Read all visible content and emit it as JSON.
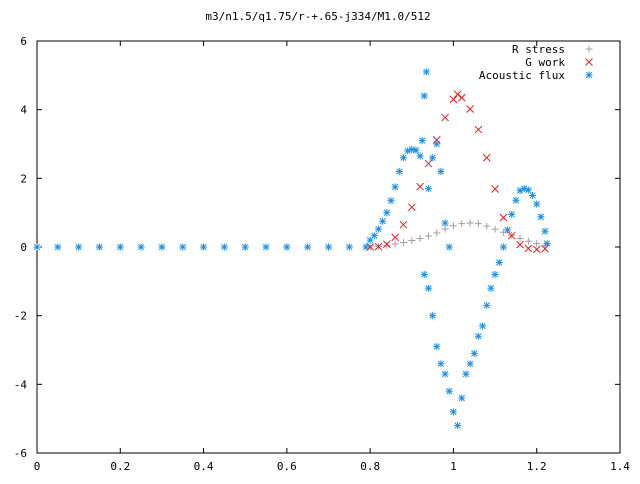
{
  "chart_data": {
    "type": "scatter",
    "title": "m3/n1.5/q1.75/r-+.65-j334/M1.0/512",
    "xlabel": "",
    "ylabel": "",
    "xlim": [
      0,
      1.4
    ],
    "ylim": [
      -6,
      6
    ],
    "x_ticks": [
      "0",
      "0.2",
      "0.4",
      "0.6",
      "0.8",
      "1",
      "1.2",
      "1.4"
    ],
    "y_ticks": [
      "-6",
      "-4",
      "-2",
      "0",
      "2",
      "4",
      "6"
    ],
    "grid": false,
    "legend_position": "top-right",
    "series": [
      {
        "name": "R stress",
        "marker": "+",
        "color": "#a0a0a0",
        "points": [
          [
            0.0,
            0.0
          ],
          [
            0.1,
            0.0
          ],
          [
            0.2,
            0.0
          ],
          [
            0.3,
            0.0
          ],
          [
            0.4,
            0.0
          ],
          [
            0.5,
            0.0
          ],
          [
            0.6,
            0.0
          ],
          [
            0.7,
            0.0
          ],
          [
            0.8,
            0.0
          ],
          [
            0.82,
            0.02
          ],
          [
            0.84,
            0.05
          ],
          [
            0.86,
            0.09
          ],
          [
            0.88,
            0.13
          ],
          [
            0.9,
            0.19
          ],
          [
            0.92,
            0.25
          ],
          [
            0.94,
            0.32
          ],
          [
            0.96,
            0.41
          ],
          [
            0.98,
            0.52
          ],
          [
            1.0,
            0.62
          ],
          [
            1.02,
            0.68
          ],
          [
            1.04,
            0.7
          ],
          [
            1.06,
            0.68
          ],
          [
            1.08,
            0.61
          ],
          [
            1.1,
            0.52
          ],
          [
            1.12,
            0.43
          ],
          [
            1.14,
            0.34
          ],
          [
            1.16,
            0.25
          ],
          [
            1.18,
            0.17
          ],
          [
            1.2,
            0.1
          ],
          [
            1.22,
            0.05
          ]
        ]
      },
      {
        "name": "G work",
        "marker": "x",
        "color": "#e22222",
        "points": [
          [
            0.8,
            0.0
          ],
          [
            0.82,
            0.01
          ],
          [
            0.84,
            0.08
          ],
          [
            0.86,
            0.28
          ],
          [
            0.88,
            0.65
          ],
          [
            0.9,
            1.16
          ],
          [
            0.92,
            1.76
          ],
          [
            0.94,
            2.43
          ],
          [
            0.96,
            3.12
          ],
          [
            0.98,
            3.77
          ],
          [
            1.0,
            4.3
          ],
          [
            1.01,
            4.45
          ],
          [
            1.02,
            4.35
          ],
          [
            1.04,
            4.02
          ],
          [
            1.06,
            3.42
          ],
          [
            1.08,
            2.6
          ],
          [
            1.1,
            1.69
          ],
          [
            1.12,
            0.86
          ],
          [
            1.14,
            0.33
          ],
          [
            1.16,
            0.07
          ],
          [
            1.18,
            -0.04
          ],
          [
            1.2,
            -0.07
          ],
          [
            1.22,
            -0.05
          ]
        ]
      },
      {
        "name": "Acoustic flux",
        "marker": "*",
        "color": "#1a8fe8",
        "points": [
          [
            0.0,
            0.0
          ],
          [
            0.05,
            0.0
          ],
          [
            0.1,
            0.0
          ],
          [
            0.15,
            0.0
          ],
          [
            0.2,
            0.0
          ],
          [
            0.25,
            0.0
          ],
          [
            0.3,
            0.0
          ],
          [
            0.35,
            0.0
          ],
          [
            0.4,
            0.0
          ],
          [
            0.45,
            0.0
          ],
          [
            0.5,
            0.0
          ],
          [
            0.55,
            0.0
          ],
          [
            0.6,
            0.0
          ],
          [
            0.65,
            0.0
          ],
          [
            0.7,
            0.0
          ],
          [
            0.75,
            0.0
          ],
          [
            0.79,
            0.0
          ],
          [
            0.8,
            0.2
          ],
          [
            0.81,
            0.33
          ],
          [
            0.82,
            0.52
          ],
          [
            0.83,
            0.75
          ],
          [
            0.84,
            1.0
          ],
          [
            0.85,
            1.35
          ],
          [
            0.86,
            1.75
          ],
          [
            0.87,
            2.2
          ],
          [
            0.88,
            2.6
          ],
          [
            0.89,
            2.8
          ],
          [
            0.9,
            2.84
          ],
          [
            0.91,
            2.82
          ],
          [
            0.92,
            2.65
          ],
          [
            0.925,
            3.1
          ],
          [
            0.93,
            4.4
          ],
          [
            0.935,
            5.1
          ],
          [
            0.94,
            1.7
          ],
          [
            0.95,
            2.6
          ],
          [
            0.96,
            3.0
          ],
          [
            0.97,
            2.2
          ],
          [
            0.98,
            0.7
          ],
          [
            0.99,
            0.0
          ],
          [
            0.93,
            -0.8
          ],
          [
            0.94,
            -1.2
          ],
          [
            0.95,
            -2.0
          ],
          [
            0.96,
            -2.9
          ],
          [
            0.97,
            -3.4
          ],
          [
            0.98,
            -3.7
          ],
          [
            0.99,
            -4.2
          ],
          [
            1.0,
            -4.8
          ],
          [
            1.01,
            -5.2
          ],
          [
            1.02,
            -4.4
          ],
          [
            1.03,
            -3.7
          ],
          [
            1.04,
            -3.4
          ],
          [
            1.05,
            -3.1
          ],
          [
            1.06,
            -2.6
          ],
          [
            1.07,
            -2.3
          ],
          [
            1.08,
            -1.7
          ],
          [
            1.09,
            -1.2
          ],
          [
            1.1,
            -0.8
          ],
          [
            1.11,
            -0.45
          ],
          [
            1.12,
            0.0
          ],
          [
            1.13,
            0.5
          ],
          [
            1.14,
            0.95
          ],
          [
            1.15,
            1.36
          ],
          [
            1.16,
            1.64
          ],
          [
            1.17,
            1.7
          ],
          [
            1.18,
            1.66
          ],
          [
            1.19,
            1.5
          ],
          [
            1.2,
            1.25
          ],
          [
            1.21,
            0.88
          ],
          [
            1.22,
            0.46
          ],
          [
            1.225,
            0.1
          ]
        ]
      }
    ]
  }
}
